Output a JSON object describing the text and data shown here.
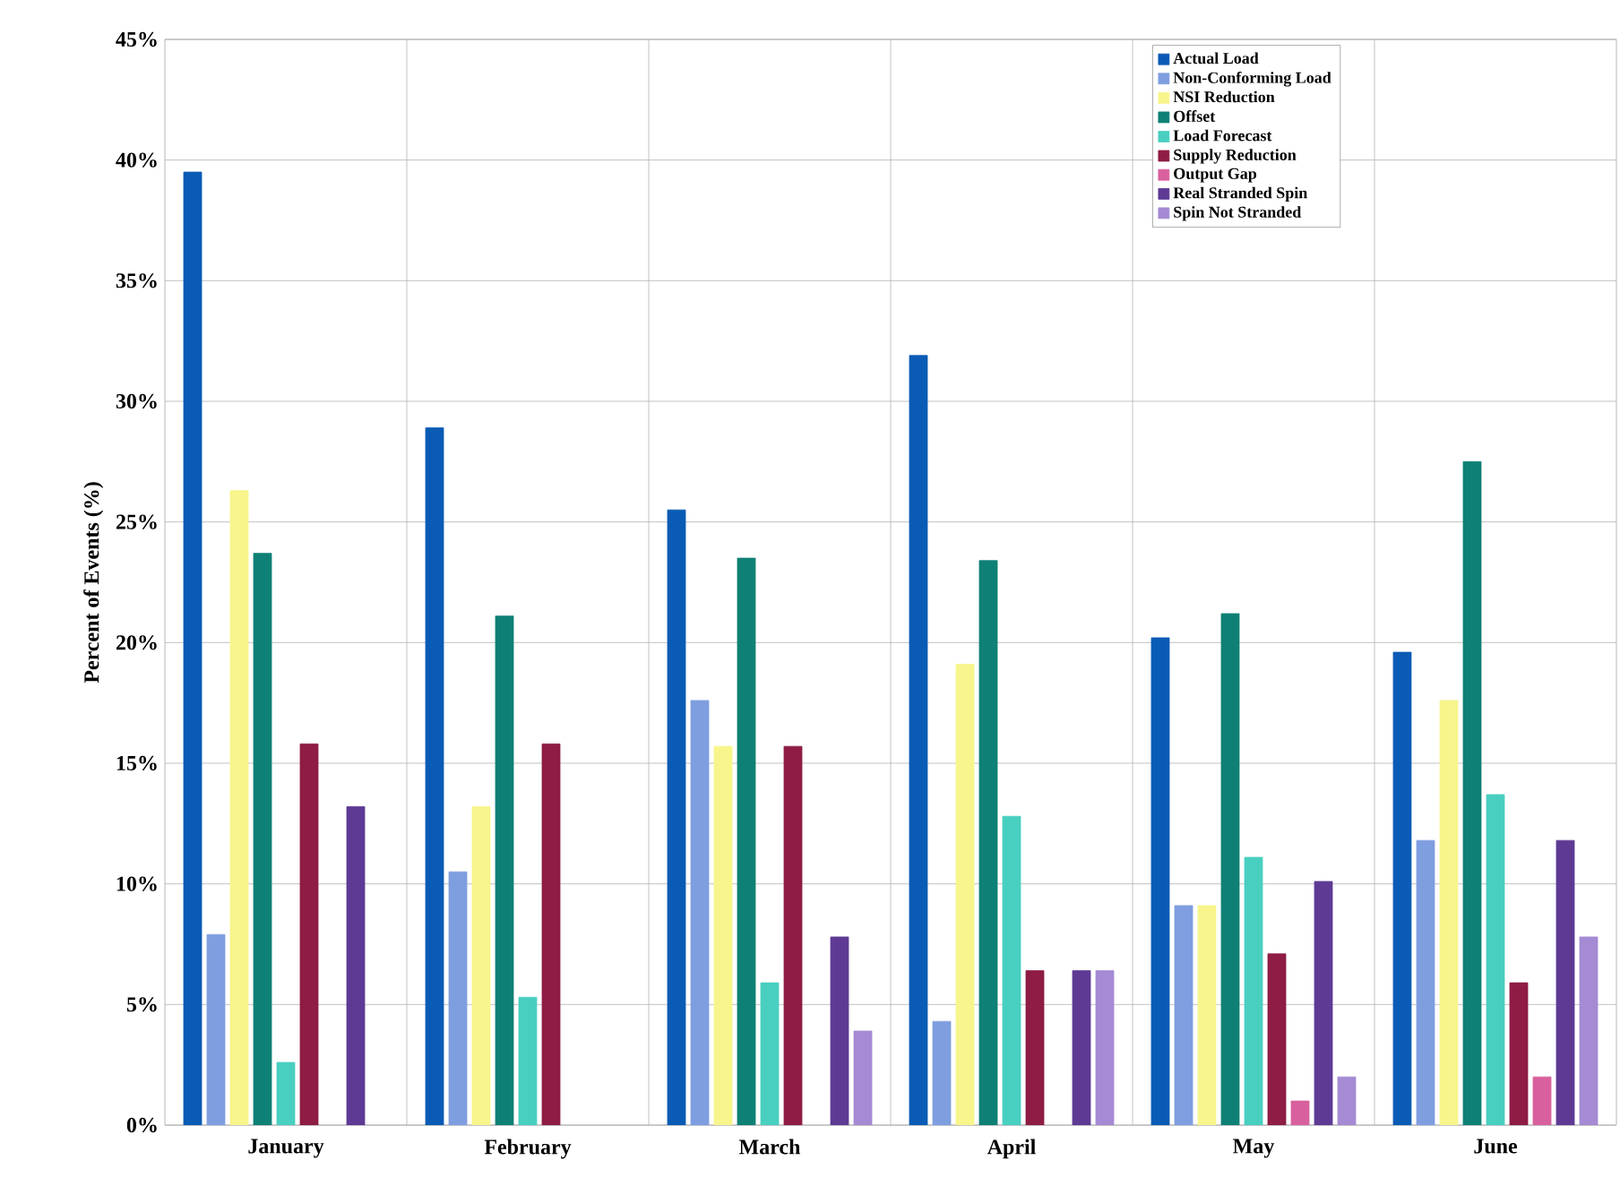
{
  "chart_data": {
    "type": "bar",
    "ylabel": "Percent of Events (%)",
    "categories": [
      "January",
      "February",
      "March",
      "April",
      "May",
      "June"
    ],
    "series": [
      {
        "name": "Actual Load",
        "color": "#0a5bb5",
        "values": [
          39.5,
          28.9,
          25.5,
          31.9,
          20.2,
          19.6
        ]
      },
      {
        "name": "Non-Conforming Load",
        "color": "#7f9ee0",
        "values": [
          7.9,
          10.5,
          17.6,
          4.3,
          9.1,
          11.8
        ]
      },
      {
        "name": "NSI Reduction",
        "color": "#f8f58c",
        "values": [
          26.3,
          13.2,
          15.7,
          19.1,
          9.1,
          17.6
        ]
      },
      {
        "name": "Offset",
        "color": "#0f8075",
        "values": [
          23.7,
          21.1,
          23.5,
          23.4,
          21.2,
          27.5
        ]
      },
      {
        "name": "Load Forecast",
        "color": "#49cfc0",
        "values": [
          2.6,
          5.3,
          5.9,
          12.8,
          11.1,
          13.7
        ]
      },
      {
        "name": "Supply Reduction",
        "color": "#8e1c45",
        "values": [
          15.8,
          15.8,
          15.7,
          6.4,
          7.1,
          5.9
        ]
      },
      {
        "name": "Output Gap",
        "color": "#d9609e",
        "values": [
          null,
          null,
          null,
          null,
          1.0,
          2.0
        ]
      },
      {
        "name": "Real Stranded Spin",
        "color": "#5e3a94",
        "values": [
          13.2,
          null,
          7.8,
          6.4,
          10.1,
          11.8
        ]
      },
      {
        "name": "Spin Not Stranded",
        "color": "#a58ad4",
        "values": [
          null,
          null,
          3.9,
          6.4,
          2.0,
          7.8
        ]
      }
    ],
    "ylim": [
      0,
      45
    ],
    "yticks": [
      {
        "value": 0,
        "label": "0%"
      },
      {
        "value": 5,
        "label": "5%"
      },
      {
        "value": 10,
        "label": "10%"
      },
      {
        "value": 15,
        "label": "15%"
      },
      {
        "value": 20,
        "label": "20%"
      },
      {
        "value": 25,
        "label": "25%"
      },
      {
        "value": 30,
        "label": "30%"
      },
      {
        "value": 35,
        "label": "35%"
      },
      {
        "value": 40,
        "label": "40%"
      },
      {
        "value": 45,
        "label": "45%"
      }
    ],
    "grid": true,
    "legend": "top right"
  }
}
